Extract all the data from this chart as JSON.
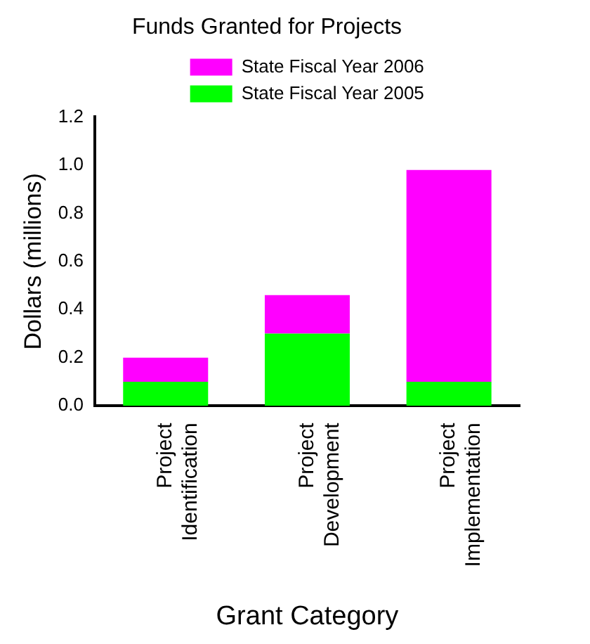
{
  "chart_data": {
    "type": "bar",
    "title": "Funds Granted for Projects",
    "xlabel": "Grant Category",
    "ylabel": "Dollars (millions)",
    "categories": [
      "Project Identification",
      "Project Development",
      "Project Implementation"
    ],
    "series": [
      {
        "name": "State Fiscal Year 2005",
        "color": "#00ff00",
        "values": [
          0.1,
          0.3,
          0.1
        ]
      },
      {
        "name": "State Fiscal Year 2006",
        "color": "#ff00ff",
        "values": [
          0.1,
          0.16,
          0.88
        ]
      }
    ],
    "stacked": true,
    "ylim": [
      0,
      1.2
    ],
    "yticks": [
      {
        "value": 0,
        "label": "0.0"
      },
      0.2,
      0.4,
      0.6,
      0.8,
      {
        "value": 1,
        "label": "1.0"
      },
      1.2
    ],
    "grid": false,
    "legend": "top"
  }
}
